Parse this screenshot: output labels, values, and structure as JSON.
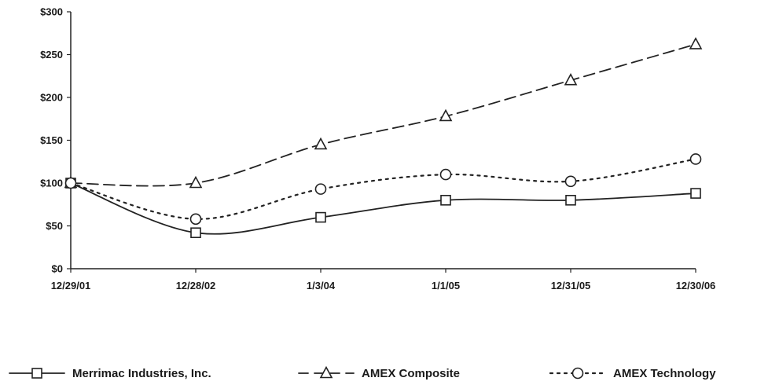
{
  "chart_data": {
    "type": "line",
    "title": "",
    "xlabel": "",
    "ylabel": "",
    "categories": [
      "12/29/01",
      "12/28/02",
      "1/3/04",
      "1/1/05",
      "12/31/05",
      "12/30/06"
    ],
    "y_ticks": [
      "$0",
      "$50",
      "$100",
      "$150",
      "$200",
      "$250",
      "$300"
    ],
    "ylim": [
      0,
      300
    ],
    "grid": false,
    "legend_position": "bottom",
    "series": [
      {
        "name": "Merrimac Industries, Inc.",
        "values": [
          100,
          42,
          60,
          80,
          80,
          88
        ],
        "line_style": "solid",
        "marker": "square",
        "color": "#222222"
      },
      {
        "name": "AMEX Composite",
        "values": [
          100,
          100,
          145,
          178,
          220,
          262
        ],
        "line_style": "dashed",
        "marker": "triangle",
        "color": "#222222"
      },
      {
        "name": "AMEX Technology",
        "values": [
          100,
          58,
          93,
          110,
          102,
          128
        ],
        "line_style": "dotted",
        "marker": "circle",
        "color": "#222222"
      }
    ]
  }
}
